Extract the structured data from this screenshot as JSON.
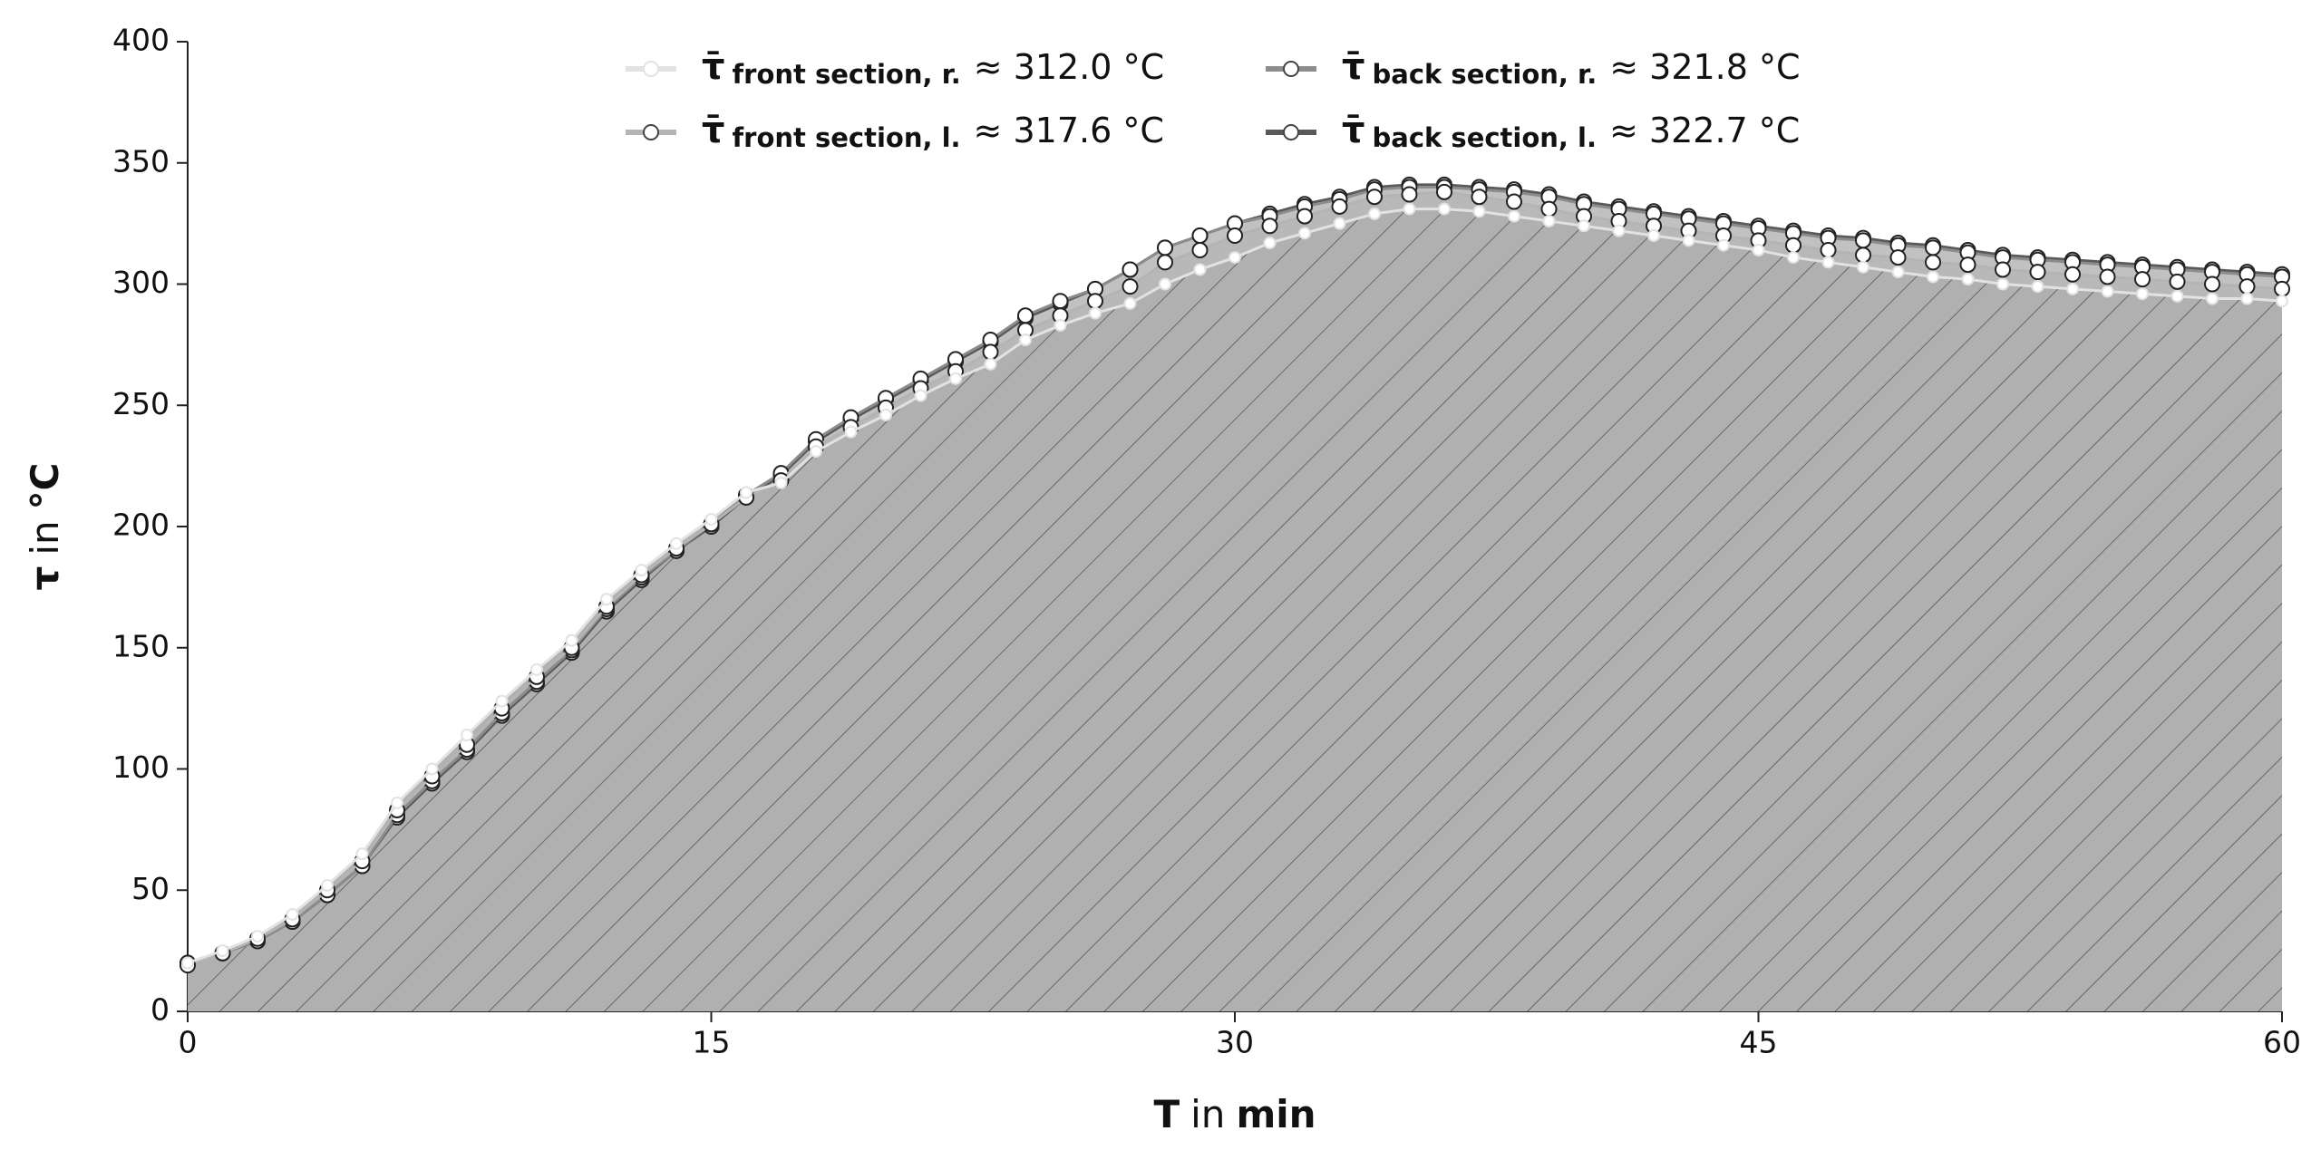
{
  "chart_data": {
    "type": "line",
    "x_label": {
      "symbol": "T",
      "word": "in",
      "unit": "min"
    },
    "y_label": {
      "symbol": "τ",
      "word": "in",
      "unit": "°C"
    },
    "legend_symbol": "τ̄",
    "legend": "upper center",
    "xlim": [
      0,
      60
    ],
    "xticks": [
      0,
      15,
      30,
      45,
      60
    ],
    "ylim": [
      0,
      400
    ],
    "yticks": [
      0,
      50,
      100,
      150,
      200,
      250,
      300,
      350,
      400
    ],
    "x": [
      0,
      1,
      2,
      3,
      4,
      5,
      6,
      7,
      8,
      9,
      10,
      11,
      12,
      13,
      14,
      15,
      16,
      17,
      18,
      19,
      20,
      21,
      22,
      23,
      24,
      25,
      26,
      27,
      28,
      29,
      30,
      31,
      32,
      33,
      34,
      35,
      36,
      37,
      38,
      39,
      40,
      41,
      42,
      43,
      44,
      45,
      46,
      47,
      48,
      49,
      50,
      51,
      52,
      53,
      54,
      55,
      56,
      57,
      58,
      59,
      60
    ],
    "series": [
      {
        "name": "front section, r.",
        "mean_label": "≈ 312.0 °C",
        "color": "#e2e2e2",
        "values": [
          20,
          25,
          31,
          40,
          52,
          65,
          86,
          100,
          114,
          128,
          141,
          153,
          170,
          182,
          193,
          203,
          214,
          218,
          231,
          239,
          246,
          254,
          261,
          267,
          277,
          283,
          288,
          292,
          300,
          306,
          311,
          317,
          321,
          325,
          329,
          331,
          331,
          330,
          328,
          326,
          324,
          322,
          320,
          318,
          316,
          314,
          311,
          309,
          307,
          305,
          303,
          302,
          300,
          299,
          298,
          297,
          296,
          295,
          294,
          294,
          293
        ]
      },
      {
        "name": "front section, l.",
        "mean_label": "≈ 317.6 °C",
        "color": "#b4b4b4",
        "values": [
          19,
          24,
          30,
          38,
          50,
          62,
          83,
          97,
          110,
          125,
          138,
          150,
          167,
          180,
          191,
          201,
          212,
          219,
          233,
          241,
          249,
          257,
          264,
          272,
          281,
          287,
          293,
          299,
          309,
          314,
          320,
          324,
          328,
          332,
          336,
          337,
          338,
          336,
          334,
          331,
          328,
          326,
          324,
          322,
          320,
          318,
          316,
          314,
          312,
          311,
          309,
          308,
          306,
          305,
          304,
          303,
          302,
          301,
          300,
          299,
          298
        ]
      },
      {
        "name": "back section, r.",
        "mean_label": "≈ 321.8 °C",
        "color": "#8c8c8c",
        "values": [
          20,
          24,
          29,
          37,
          48,
          60,
          81,
          95,
          108,
          123,
          136,
          149,
          166,
          179,
          190,
          201,
          213,
          222,
          236,
          245,
          253,
          261,
          269,
          277,
          287,
          293,
          298,
          306,
          315,
          320,
          325,
          328,
          332,
          335,
          339,
          340,
          340,
          339,
          338,
          336,
          333,
          331,
          329,
          327,
          325,
          323,
          321,
          319,
          318,
          316,
          315,
          313,
          311,
          310,
          309,
          308,
          307,
          306,
          305,
          304,
          303
        ]
      },
      {
        "name": "back section, l.",
        "mean_label": "≈ 322.7 °C",
        "color": "#5a5a5a",
        "values": [
          20,
          24,
          29,
          37,
          48,
          60,
          80,
          94,
          107,
          122,
          135,
          148,
          165,
          178,
          190,
          200,
          212,
          221,
          235,
          244,
          252,
          260,
          268,
          276,
          286,
          292,
          298,
          306,
          315,
          320,
          325,
          329,
          333,
          336,
          340,
          341,
          341,
          340,
          339,
          337,
          334,
          332,
          330,
          328,
          326,
          324,
          322,
          320,
          319,
          317,
          316,
          314,
          312,
          311,
          310,
          309,
          308,
          307,
          306,
          305,
          304
        ]
      }
    ]
  }
}
